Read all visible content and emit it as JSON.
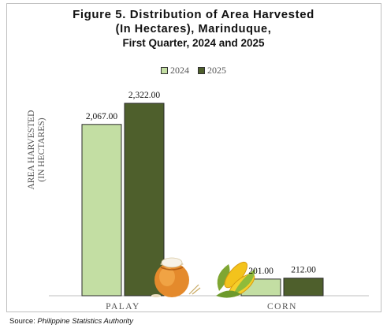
{
  "chart_data": {
    "type": "bar",
    "title": "Figure 5. Distribution of Area Harvested",
    "title_line2": "(In Hectares), Marinduque,",
    "subtitle": "First Quarter, 2024 and 2025",
    "ylabel": "AREA HARVESTED",
    "ylabel_line2": "(IN HECTARES)",
    "xlabel": "",
    "categories": [
      "PALAY",
      "CORN"
    ],
    "series": [
      {
        "name": "2024",
        "values": [
          2067.0,
          201.0
        ],
        "labels": [
          "2,067.00",
          "201.00"
        ],
        "color": "#c3dea3"
      },
      {
        "name": "2025",
        "values": [
          2322.0,
          212.0
        ],
        "labels": [
          "2,322.00",
          "212.00"
        ],
        "color": "#4e5f2c"
      }
    ],
    "ylim": [
      0,
      2322.0
    ],
    "grid": false,
    "legend_position": "top-center",
    "decorations": [
      "rice-sack-icon",
      "corn-icon"
    ]
  },
  "source": {
    "prefix": "Source: ",
    "text": "Philippine Statistics Authority"
  }
}
